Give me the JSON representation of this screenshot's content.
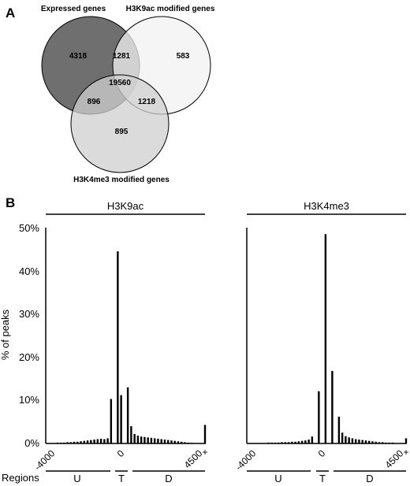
{
  "panel_a": {
    "letter": "A",
    "venn": {
      "sets": [
        {
          "label": "Expressed genes",
          "fill": "#6f6f6f"
        },
        {
          "label": "H3K9ac modified genes",
          "fill": "#f2f2f2"
        },
        {
          "label": "H3K4me3 modified genes",
          "fill": "#cfcfcf"
        }
      ],
      "counts": {
        "expressed_only": "4318",
        "k9_only": "583",
        "k4_only": "895",
        "expressed_k9": "1281",
        "expressed_k4": "896",
        "k9_k4": "1218",
        "all_three": "19560"
      }
    }
  },
  "panel_b": {
    "letter": "B",
    "ylabel": "% of peaks",
    "regions_label": "Regions",
    "region_names": [
      "U",
      "T",
      "D"
    ]
  },
  "chart_data": [
    {
      "type": "bar",
      "title": "H3K9ac",
      "ylabel": "% of peaks",
      "ylim": [
        0,
        50
      ],
      "yticks": [
        "0%",
        "10%",
        "20%",
        "30%",
        "40%",
        "50%"
      ],
      "xtick_labels": [
        "-4000",
        "0",
        "4500",
        "+"
      ],
      "values": [
        0.1,
        0.1,
        0.1,
        0.2,
        0.2,
        0.2,
        0.3,
        0.3,
        0.4,
        0.4,
        0.5,
        0.6,
        0.7,
        0.8,
        0.9,
        1.0,
        1.1,
        1.0,
        1.2,
        10.3,
        0.0,
        44.5,
        11.2,
        0.0,
        13.0,
        4.0,
        2.2,
        1.8,
        1.6,
        1.5,
        1.4,
        1.3,
        1.2,
        1.1,
        1.0,
        0.9,
        0.8,
        0.7,
        0.6,
        0.5,
        0.4,
        0.3,
        0.2,
        0.15,
        0.1,
        0.1,
        0.1,
        4.3
      ],
      "grid": false
    },
    {
      "type": "bar",
      "title": "H3K4me3",
      "ylabel": "% of peaks",
      "ylim": [
        0,
        50
      ],
      "xtick_labels": [
        "-4000",
        "0",
        "4500",
        "+"
      ],
      "values": [
        0.1,
        0.1,
        0.1,
        0.1,
        0.1,
        0.1,
        0.2,
        0.2,
        0.2,
        0.2,
        0.3,
        0.3,
        0.3,
        0.4,
        0.4,
        0.5,
        0.6,
        0.7,
        0.9,
        1.6,
        0.0,
        12.1,
        0.0,
        48.5,
        0.0,
        16.8,
        0.0,
        6.2,
        2.5,
        1.7,
        1.4,
        1.2,
        1.0,
        0.9,
        0.8,
        0.7,
        0.6,
        0.5,
        0.4,
        0.3,
        0.3,
        0.2,
        0.2,
        0.2,
        0.1,
        0.1,
        0.1,
        1.2
      ],
      "grid": false
    }
  ]
}
